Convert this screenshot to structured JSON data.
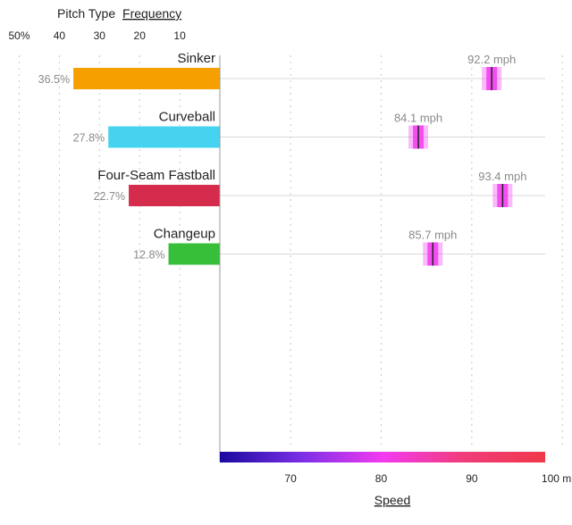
{
  "chart_data": {
    "type": "bar",
    "title_prefix": "Pitch Type",
    "title_underlined": "Frequency",
    "freq_ticks": [
      "50%",
      "40",
      "30",
      "20",
      "10"
    ],
    "freq_tick_values": [
      50,
      40,
      30,
      20,
      10
    ],
    "speed_ticks": [
      "70",
      "80",
      "90",
      "100 mph"
    ],
    "speed_tick_values": [
      70,
      80,
      90,
      100
    ],
    "speed_xlabel": "Speed",
    "speed_range": [
      62.2,
      98.1
    ],
    "pitches": [
      {
        "name": "Sinker",
        "frequency": 36.5,
        "freq_label": "36.5%",
        "speed": 92.2,
        "speed_label": "92.2 mph",
        "color": "#f5a000"
      },
      {
        "name": "Curveball",
        "frequency": 27.8,
        "freq_label": "27.8%",
        "speed": 84.1,
        "speed_label": "84.1 mph",
        "color": "#45d3f0"
      },
      {
        "name": "Four-Seam Fastball",
        "frequency": 22.7,
        "freq_label": "22.7%",
        "speed": 93.4,
        "speed_label": "93.4 mph",
        "color": "#d52b4c"
      },
      {
        "name": "Changeup",
        "frequency": 12.8,
        "freq_label": "12.8%",
        "speed": 85.7,
        "speed_label": "85.7 mph",
        "color": "#37bf3a"
      }
    ],
    "speed_gradient_colors": [
      "#1a0a9e",
      "#7a2fe6",
      "#f23bf0",
      "#f03c7a",
      "#f0384a"
    ],
    "speed_marker_color": "#f23bf0"
  }
}
